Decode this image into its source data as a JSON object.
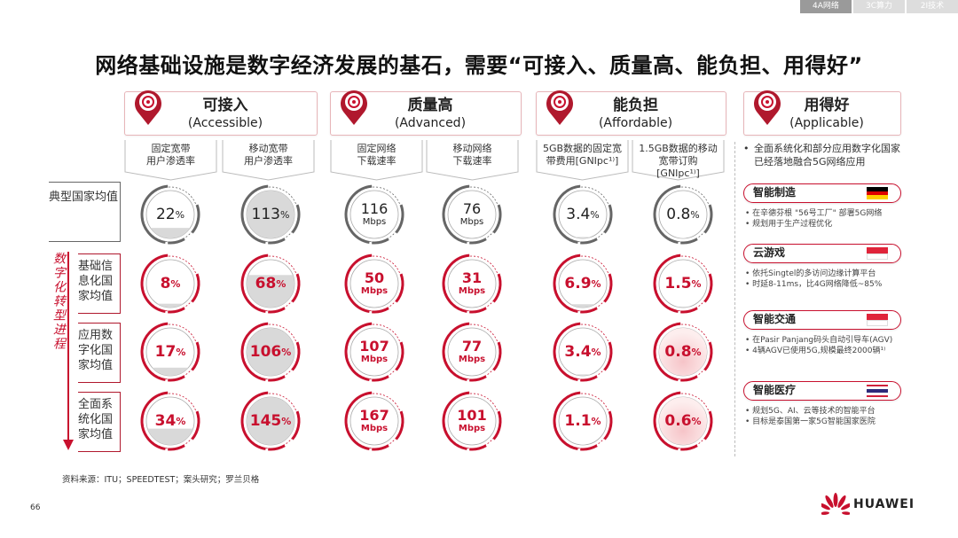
{
  "tabs": [
    "4A网络",
    "3C算力",
    "2I技术"
  ],
  "title": "网络基础设施是数字经济发展的基石，需要“可接入、质量高、能负担、用得好”",
  "pillars": [
    {
      "title": "可接入",
      "subtitle": "(Accessible)",
      "icon": "network-icon",
      "metrics": [
        "固定宽带\n用户渗透率",
        "移动宽带\n用户渗透率"
      ]
    },
    {
      "title": "质量高",
      "subtitle": "(Advanced)",
      "icon": "cloud-speed-icon",
      "metrics": [
        "固定网络\n下载速率",
        "移动网络\n下载速率"
      ]
    },
    {
      "title": "能负担",
      "subtitle": "(Affordable)",
      "icon": "money-bag-icon",
      "metrics": [
        "5GB数据的固定宽\n带费用[GNIpc¹⁾]",
        "1.5GB数据的移动\n宽带订购\n[GNIpc¹⁾]"
      ]
    },
    {
      "title": "用得好",
      "subtitle": "(Applicable)",
      "icon": "gears-icon"
    }
  ],
  "row_labels": [
    "典型国家均值",
    "基础信息化国家均值",
    "应用数字化国家均值",
    "全面系统化国家均值"
  ],
  "progress_label": "数字化转型进程",
  "grid": [
    [
      {
        "v": "22",
        "u": "%",
        "fill": 0.22
      },
      {
        "v": "113",
        "u": "%",
        "fill": 1
      },
      {
        "v": "116",
        "u": "Mbps",
        "speed": true
      },
      {
        "v": "76",
        "u": "Mbps",
        "speed": true
      },
      {
        "v": "3.4",
        "u": "%",
        "fill": 0.03
      },
      {
        "v": "0.8",
        "u": "%",
        "fill": 0.01
      }
    ],
    [
      {
        "v": "8",
        "u": "%",
        "fill": 0.08
      },
      {
        "v": "68",
        "u": "%",
        "fill": 0.68
      },
      {
        "v": "50",
        "u": "Mbps",
        "speed": true
      },
      {
        "v": "31",
        "u": "Mbps",
        "speed": true
      },
      {
        "v": "6.9",
        "u": "%",
        "fill": 0.07
      },
      {
        "v": "1.5",
        "u": "%",
        "fill": 0.02
      }
    ],
    [
      {
        "v": "17",
        "u": "%",
        "fill": 0.17
      },
      {
        "v": "106",
        "u": "%",
        "fill": 1
      },
      {
        "v": "107",
        "u": "Mbps",
        "speed": true
      },
      {
        "v": "77",
        "u": "Mbps",
        "speed": true
      },
      {
        "v": "3.4",
        "u": "%",
        "fill": 0.03
      },
      {
        "v": "0.8",
        "u": "%",
        "fill": 0.01,
        "highlight": true
      }
    ],
    [
      {
        "v": "34",
        "u": "%",
        "fill": 0.34
      },
      {
        "v": "145",
        "u": "%",
        "fill": 1
      },
      {
        "v": "167",
        "u": "Mbps",
        "speed": true
      },
      {
        "v": "101",
        "u": "Mbps",
        "speed": true
      },
      {
        "v": "1.1",
        "u": "%",
        "fill": 0.01
      },
      {
        "v": "0.6",
        "u": "%",
        "fill": 0.01,
        "highlight": true
      }
    ]
  ],
  "applicable": {
    "intro": "全面系统化和部分应用数字化国家已经落地融合5G网络应用",
    "cases": [
      {
        "title": "智能制造",
        "flag": "germany-flag",
        "bullets": [
          "在辛德芬根 \"56号工厂\" 部署5G网络",
          "规划用于生产过程优化"
        ]
      },
      {
        "title": "云游戏",
        "flag": "singapore-flag",
        "bullets": [
          "依托Singtel的多访问边缘计算平台",
          "时延8-11ms，比4G网络降低~85%"
        ]
      },
      {
        "title": "智能交通",
        "flag": "singapore-flag",
        "bullets": [
          "在Pasir Panjang码头自动引导车(AGV)",
          "4辆AGV已使用5G,规模最终2000辆¹⁾"
        ]
      },
      {
        "title": "智能医疗",
        "flag": "thailand-flag",
        "bullets": [
          "规划5G、AI、云等技术的智能平台",
          "目标是泰国第一家5G智能国家医院"
        ]
      }
    ]
  },
  "footer": "资料来源：ITU；SPEEDTEST；案头研究；罗兰贝格",
  "page_number": "66",
  "brand": "HUAWEI",
  "colors": {
    "accent": "#c8102e",
    "neutral": "#666666",
    "fill": "#d9d9d9"
  }
}
